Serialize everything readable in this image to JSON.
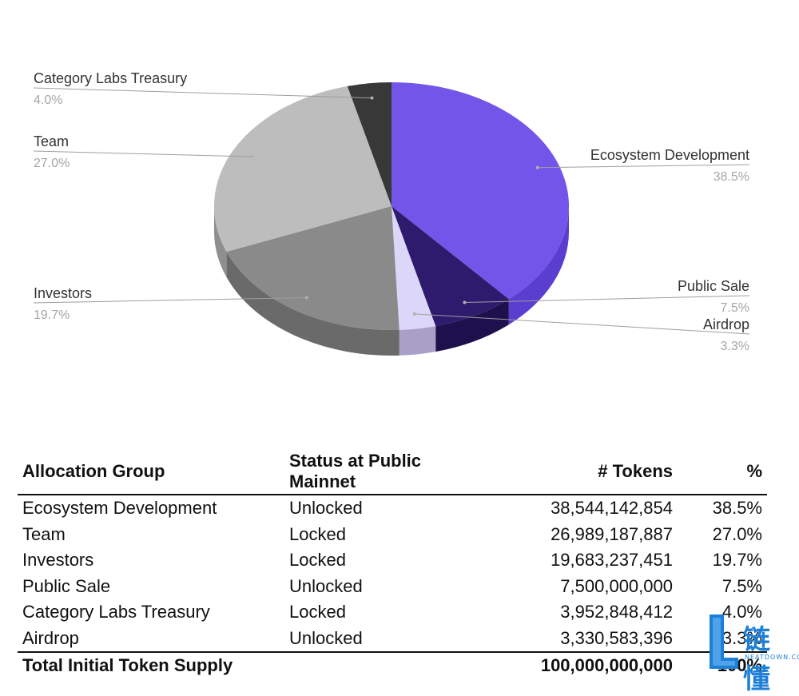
{
  "chart_data": {
    "type": "pie",
    "title": "",
    "slices": [
      {
        "label": "Ecosystem Development",
        "value": 38.5,
        "pct_label": "38.5%",
        "color": "#7455e9",
        "side": "#5a3ed0"
      },
      {
        "label": "Public Sale",
        "value": 7.5,
        "pct_label": "7.5%",
        "color": "#2e1b6e",
        "side": "#1d104d"
      },
      {
        "label": "Airdrop",
        "value": 3.3,
        "pct_label": "3.3%",
        "color": "#dcd6f8",
        "side": "#a9a0c8"
      },
      {
        "label": "Investors",
        "value": 19.7,
        "pct_label": "19.7%",
        "color": "#8a8a8a",
        "side": "#6a6a6a"
      },
      {
        "label": "Team",
        "value": 27.0,
        "pct_label": "27.0%",
        "color": "#bdbdbd",
        "side": "#8f8f8f"
      },
      {
        "label": "Category Labs Treasury",
        "value": 4.0,
        "pct_label": "4.0%",
        "color": "#383838",
        "side": "#222222"
      }
    ],
    "legend": "callout-labels"
  },
  "table": {
    "headers": [
      "Allocation Group",
      "Status at Public Mainnet",
      "# Tokens",
      "%"
    ],
    "rows": [
      [
        "Ecosystem Development",
        "Unlocked",
        "38,544,142,854",
        "38.5%"
      ],
      [
        "Team",
        "Locked",
        "26,989,187,887",
        "27.0%"
      ],
      [
        "Investors",
        "Locked",
        "19,683,237,451",
        "19.7%"
      ],
      [
        "Public Sale",
        "Unlocked",
        "7,500,000,000",
        "7.5%"
      ],
      [
        "Category Labs Treasury",
        "Locked",
        "3,952,848,412",
        "4.0%"
      ],
      [
        "Airdrop",
        "Unlocked",
        "3,330,583,396",
        "3.3%"
      ]
    ],
    "total": [
      "Total Initial Token Supply",
      "",
      "100,000,000,000",
      "100%"
    ]
  },
  "watermark": {
    "text": "链懂",
    "sub": "NEATDOWN.COM",
    "color": "#1e7fd6"
  }
}
